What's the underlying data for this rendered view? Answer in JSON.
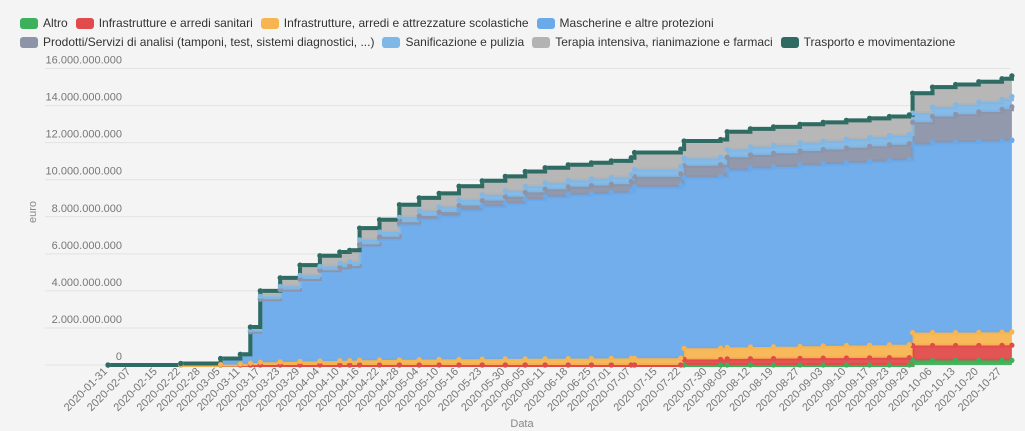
{
  "chart_data": {
    "type": "area",
    "stacked": true,
    "xlabel": "Data",
    "ylabel": "euro",
    "ylim": [
      0,
      17000000000
    ],
    "yticks": [
      0,
      2000000000,
      4000000000,
      6000000000,
      8000000000,
      10000000000,
      12000000000,
      14000000000,
      16000000000
    ],
    "ytick_labels": [
      "0",
      "2.000.000.000",
      "4.000.000.000",
      "6.000.000.000",
      "8.000.000.000",
      "10.000.000.000",
      "12.000.000.000",
      "14.000.000.000",
      "16.000.000.000"
    ],
    "xticks": [
      "2020-01-31",
      "2020-02-07",
      "2020-02-15",
      "2020-02-22",
      "2020-02-28",
      "2020-03-05",
      "2020-03-11",
      "2020-03-17",
      "2020-03-23",
      "2020-03-29",
      "2020-04-04",
      "2020-04-10",
      "2020-04-16",
      "2020-04-22",
      "2020-04-28",
      "2020-05-04",
      "2020-05-10",
      "2020-05-16",
      "2020-05-23",
      "2020-05-30",
      "2020-06-05",
      "2020-06-11",
      "2020-06-18",
      "2020-06-25",
      "2020-07-01",
      "2020-07-07",
      "2020-07-15",
      "2020-07-22",
      "2020-07-30",
      "2020-08-05",
      "2020-08-12",
      "2020-08-19",
      "2020-08-27",
      "2020-09-03",
      "2020-09-10",
      "2020-09-17",
      "2020-09-23",
      "2020-09-29",
      "2020-10-06",
      "2020-10-13",
      "2020-10-20",
      "2020-10-27"
    ],
    "legend_position": "top",
    "grid": true,
    "dates": [
      "2020-01-31",
      "2020-02-22",
      "2020-03-05",
      "2020-03-11",
      "2020-03-14",
      "2020-03-17",
      "2020-03-23",
      "2020-03-29",
      "2020-04-04",
      "2020-04-10",
      "2020-04-13",
      "2020-04-16",
      "2020-04-22",
      "2020-04-28",
      "2020-05-04",
      "2020-05-10",
      "2020-05-16",
      "2020-05-23",
      "2020-05-30",
      "2020-06-05",
      "2020-06-11",
      "2020-06-18",
      "2020-06-25",
      "2020-07-01",
      "2020-07-07",
      "2020-07-08",
      "2020-07-22",
      "2020-07-23",
      "2020-08-03",
      "2020-08-05",
      "2020-08-12",
      "2020-08-19",
      "2020-08-27",
      "2020-09-03",
      "2020-09-10",
      "2020-09-17",
      "2020-09-23",
      "2020-09-29",
      "2020-09-30",
      "2020-10-06",
      "2020-10-13",
      "2020-10-20",
      "2020-10-27",
      "2020-10-30"
    ],
    "series": [
      {
        "name": "Altro",
        "color": "#3cb05a",
        "values": [
          0,
          0,
          0,
          0,
          0,
          0,
          0,
          0,
          0,
          0,
          0,
          0,
          0,
          0,
          0,
          0,
          0,
          0,
          0,
          0,
          0,
          0,
          0,
          0,
          0,
          0,
          0,
          0,
          0,
          0,
          0,
          0,
          0,
          0,
          0,
          0,
          0,
          0,
          250000000,
          250000000,
          250000000,
          250000000,
          250000000,
          250000000
        ]
      },
      {
        "name": "Infrastrutture e arredi sanitari",
        "color": "#e14b4b",
        "values": [
          0,
          0,
          0,
          0,
          0,
          0,
          0,
          0,
          0,
          0,
          0,
          0,
          0,
          0,
          0,
          0,
          0,
          0,
          0,
          0,
          0,
          0,
          0,
          0,
          0,
          0,
          0,
          300000000,
          300000000,
          330000000,
          340000000,
          350000000,
          360000000,
          370000000,
          380000000,
          390000000,
          400000000,
          400000000,
          800000000,
          800000000,
          800000000,
          800000000,
          810000000,
          820000000
        ]
      },
      {
        "name": "Infrastrutture, arredi e attrezzature scolastiche",
        "color": "#f7b551",
        "values": [
          0,
          0,
          20000000,
          50000000,
          100000000,
          150000000,
          170000000,
          190000000,
          210000000,
          230000000,
          240000000,
          260000000,
          270000000,
          280000000,
          290000000,
          300000000,
          310000000,
          320000000,
          330000000,
          335000000,
          340000000,
          345000000,
          350000000,
          355000000,
          360000000,
          360000000,
          370000000,
          600000000,
          610000000,
          620000000,
          630000000,
          640000000,
          650000000,
          660000000,
          670000000,
          680000000,
          690000000,
          700000000,
          700000000,
          700000000,
          700000000,
          710000000,
          710000000,
          720000000
        ]
      },
      {
        "name": "Mascherine e altre protezioni",
        "color": "#6aaaeb",
        "values": [
          0,
          80000000,
          330000000,
          520000000,
          1700000000,
          3400000000,
          3900000000,
          4450000000,
          4900000000,
          5050000000,
          5100000000,
          6200000000,
          6550000000,
          7300000000,
          7600000000,
          7750000000,
          8050000000,
          8250000000,
          8400000000,
          8600000000,
          8750000000,
          8850000000,
          8900000000,
          8950000000,
          9050000000,
          9250000000,
          9350000000,
          9230000000,
          9250000000,
          9560000000,
          9650000000,
          9700000000,
          9780000000,
          9820000000,
          9870000000,
          9920000000,
          9960000000,
          9990000000,
          10150000000,
          10260000000,
          10280000000,
          10300000000,
          10330000000,
          10350000000
        ]
      },
      {
        "name": "Prodotti/Servizi di analisi (tamponi, test, sistemi diagnostici, ...)",
        "color": "#8d94a8",
        "values": [
          0,
          0,
          0,
          0,
          0,
          0,
          0,
          0,
          0,
          0,
          0,
          50000000,
          100000000,
          120000000,
          150000000,
          200000000,
          250000000,
          300000000,
          350000000,
          380000000,
          400000000,
          420000000,
          440000000,
          460000000,
          500000000,
          550000000,
          600000000,
          620000000,
          650000000,
          700000000,
          720000000,
          740000000,
          760000000,
          780000000,
          800000000,
          820000000,
          840000000,
          860000000,
          1200000000,
          1400000000,
          1500000000,
          1600000000,
          1700000000,
          1800000000
        ]
      },
      {
        "name": "Sanificazione e pulizia",
        "color": "#7fb7e6",
        "values": [
          0,
          0,
          0,
          0,
          100000000,
          150000000,
          180000000,
          200000000,
          210000000,
          220000000,
          230000000,
          240000000,
          260000000,
          270000000,
          280000000,
          290000000,
          300000000,
          310000000,
          320000000,
          330000000,
          340000000,
          350000000,
          360000000,
          370000000,
          380000000,
          390000000,
          400000000,
          400000000,
          410000000,
          420000000,
          430000000,
          440000000,
          450000000,
          460000000,
          470000000,
          480000000,
          490000000,
          500000000,
          500000000,
          510000000,
          520000000,
          530000000,
          540000000,
          550000000
        ]
      },
      {
        "name": "Terapia intensiva, rianimazione e farmaci",
        "color": "#b3b3b3",
        "values": [
          0,
          0,
          0,
          0,
          150000000,
          300000000,
          450000000,
          550000000,
          580000000,
          600000000,
          620000000,
          640000000,
          660000000,
          680000000,
          700000000,
          720000000,
          740000000,
          760000000,
          780000000,
          800000000,
          820000000,
          840000000,
          860000000,
          880000000,
          900000000,
          920000000,
          930000000,
          940000000,
          950000000,
          960000000,
          970000000,
          980000000,
          990000000,
          1000000000,
          1010000000,
          1020000000,
          1030000000,
          1050000000,
          1070000000,
          1080000000,
          1090000000,
          1100000000,
          1110000000,
          1120000000
        ]
      },
      {
        "name": "Trasporto e movimentazione",
        "color": "#2d6b63",
        "values": [
          0,
          0,
          0,
          0,
          0,
          0,
          0,
          0,
          0,
          0,
          0,
          0,
          0,
          0,
          0,
          0,
          0,
          0,
          0,
          0,
          0,
          0,
          0,
          0,
          0,
          0,
          0,
          0,
          0,
          0,
          0,
          0,
          0,
          0,
          0,
          0,
          0,
          0,
          0,
          0,
          0,
          0,
          0,
          0
        ]
      }
    ]
  }
}
